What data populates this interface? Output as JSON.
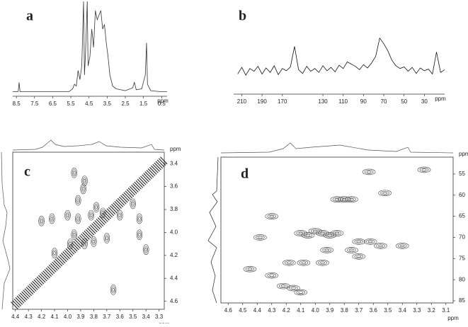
{
  "chart_data": [
    {
      "type": "line",
      "title": "a",
      "x_label": "ppm",
      "x": [
        8.7,
        8.4,
        8.35,
        8.3,
        5.6,
        5.4,
        5.3,
        5.2,
        5.1,
        5.0,
        4.9,
        4.8,
        4.75,
        4.7,
        4.6,
        4.55,
        4.45,
        4.35,
        4.25,
        4.15,
        4.05,
        3.95,
        3.85,
        3.75,
        3.65,
        3.55,
        3.45,
        3.35,
        3.2,
        3.0,
        2.5,
        2.1,
        2.0,
        1.9,
        1.6,
        1.4,
        1.33,
        1.28,
        1.1,
        0.6,
        0.2
      ],
      "values": [
        2,
        2,
        12,
        2,
        2,
        5,
        10,
        8,
        25,
        15,
        30,
        100,
        20,
        40,
        100,
        30,
        40,
        70,
        50,
        90,
        80,
        85,
        90,
        70,
        75,
        55,
        40,
        20,
        8,
        5,
        3,
        6,
        12,
        4,
        5,
        20,
        55,
        10,
        3,
        2,
        2
      ],
      "xlim": [
        8.7,
        0.2
      ],
      "ylim": [
        0,
        100
      ],
      "xticks": [
        8.5,
        7.5,
        6.5,
        5.5,
        4.5,
        3.5,
        2.5,
        1.5,
        0.5
      ],
      "color": "#333333"
    },
    {
      "type": "line",
      "title": "b",
      "x_label": "ppm",
      "x": [
        214,
        210,
        206,
        202,
        198,
        194,
        190,
        186,
        182,
        178,
        174,
        170,
        166,
        162,
        158,
        154,
        150,
        146,
        142,
        138,
        134,
        130,
        126,
        122,
        118,
        114,
        110,
        106,
        102,
        98,
        94,
        90,
        86,
        82,
        78,
        74,
        70,
        66,
        62,
        58,
        54,
        50,
        46,
        42,
        38,
        34,
        30,
        26,
        22,
        18,
        14,
        10
      ],
      "values": [
        30,
        42,
        28,
        40,
        35,
        44,
        30,
        41,
        33,
        45,
        29,
        40,
        36,
        43,
        80,
        38,
        31,
        44,
        35,
        40,
        33,
        45,
        36,
        42,
        34,
        46,
        40,
        52,
        48,
        44,
        38,
        47,
        41,
        50,
        62,
        95,
        85,
        72,
        55,
        45,
        40,
        43,
        35,
        42,
        31,
        41,
        36,
        39,
        30,
        70,
        33,
        38
      ],
      "xlim": [
        218,
        10
      ],
      "ylim": [
        0,
        100
      ],
      "xticks": [
        210,
        190,
        170,
        130,
        110,
        90,
        70,
        50,
        30
      ],
      "color": "#111111"
    },
    {
      "type": "scatter",
      "title": "c",
      "x_label": "ppm",
      "y_label": "ppm",
      "x": [
        3.92,
        3.88,
        3.78,
        3.73,
        3.82,
        3.92,
        3.95,
        3.98,
        3.87,
        3.5,
        3.45,
        3.45,
        4.12,
        4.2,
        3.6,
        3.7,
        3.8,
        3.65,
        3.4,
        4.1,
        3.95,
        3.87,
        4.0
      ],
      "values": [
        3.72,
        3.62,
        3.78,
        3.83,
        3.85,
        3.88,
        4.02,
        4.1,
        4.1,
        3.75,
        3.88,
        4.02,
        3.88,
        3.9,
        3.85,
        4.05,
        4.08,
        4.5,
        4.15,
        4.18,
        3.48,
        3.55,
        3.85
      ],
      "xlim": [
        4.42,
        3.26
      ],
      "ylim": [
        3.3,
        4.67
      ],
      "xticks": [
        4.4,
        4.3,
        4.2,
        4.1,
        {
          "value": 4,
          "label": "4.0"
        },
        3.9,
        3.8,
        3.7,
        3.6,
        3.5,
        3.4,
        3.3
      ],
      "yticks": [
        3.4,
        3.6,
        3.8,
        {
          "value": 4,
          "label": "4.0"
        },
        4.2,
        4.4,
        4.6
      ],
      "color": "#444444"
    },
    {
      "type": "scatter",
      "title": "d",
      "x_label": "ppm",
      "y_label": "ppm",
      "x": [
        3.85,
        3.8,
        3.75,
        4.0,
        3.95,
        3.9,
        3.85,
        4.05,
        4.1,
        3.7,
        3.62,
        3.55,
        3.75,
        3.92,
        4.08,
        4.18,
        3.95,
        4.22,
        4.15,
        4.1,
        4.38,
        4.3,
        4.45,
        3.52,
        3.25,
        3.4,
        3.63,
        4.3,
        3.7
      ],
      "values": [
        61,
        61,
        61,
        68.5,
        69,
        69.5,
        69,
        69.5,
        69,
        71,
        71,
        72,
        73,
        73,
        76,
        76,
        76,
        81.5,
        82,
        83,
        70,
        79,
        77.5,
        59.5,
        54,
        72,
        54.5,
        65,
        74.5
      ],
      "xlim": [
        4.65,
        3.05
      ],
      "ylim": [
        51,
        85.5
      ],
      "xticks": [
        4.6,
        4.5,
        4.4,
        4.3,
        4.2,
        4.1,
        {
          "value": 4,
          "label": "4.0"
        },
        3.9,
        3.8,
        3.7,
        3.6,
        3.5,
        3.4,
        3.3,
        3.2,
        3.1
      ],
      "yticks": [
        55,
        60,
        65,
        70,
        75,
        80,
        85
      ],
      "color": "#444444"
    }
  ]
}
